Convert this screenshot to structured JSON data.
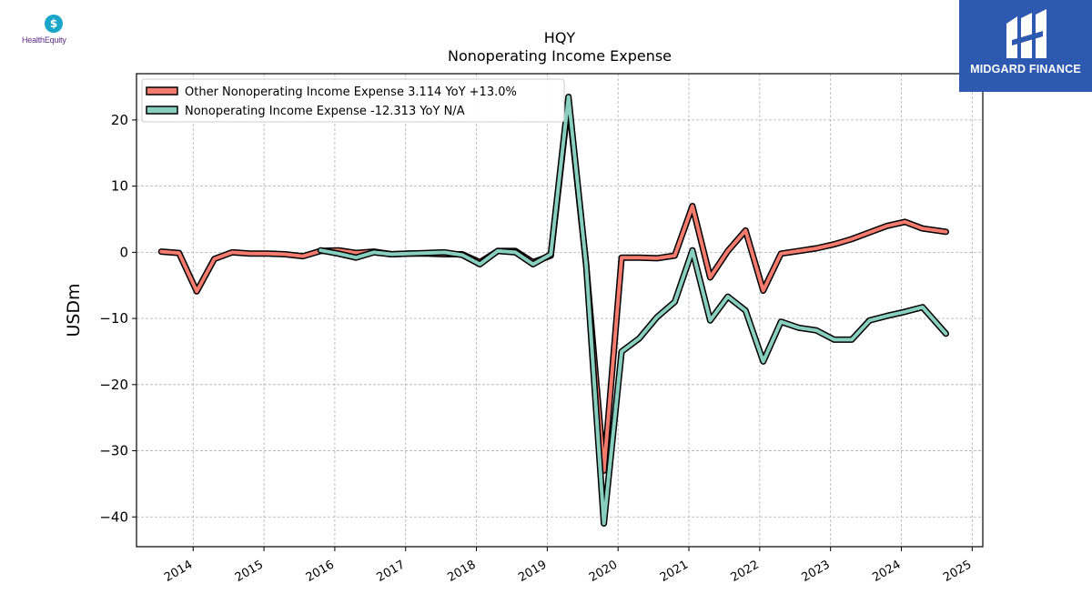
{
  "header": {
    "ticker": "HQY",
    "subtitle": "Nonoperating Income Expense"
  },
  "logos": {
    "left": {
      "name": "HealthEquity",
      "glyph": "$",
      "color": "#1aa6c8",
      "text_color": "#5b2c86"
    },
    "right": {
      "name": "MIDGARD FINANCE",
      "background": "#2e59b0"
    }
  },
  "chart_data": {
    "type": "line",
    "title": "HQY",
    "subtitle": "Nonoperating Income Expense",
    "ylabel": "USDm",
    "xlabel": "",
    "xlim": [
      2013.2,
      2025.15
    ],
    "ylim": [
      -44.5,
      27
    ],
    "x_ticks": [
      2014,
      2015,
      2016,
      2017,
      2018,
      2019,
      2020,
      2021,
      2022,
      2023,
      2024,
      2025
    ],
    "x_tick_labels": [
      "2014",
      "2015",
      "2016",
      "2017",
      "2018",
      "2019",
      "2020",
      "2021",
      "2022",
      "2023",
      "2024",
      "2025"
    ],
    "y_ticks": [
      20,
      10,
      0,
      -10,
      -20,
      -30,
      -40
    ],
    "y_tick_labels": [
      "20",
      "10",
      "0",
      "−10",
      "−20",
      "−30",
      "−40"
    ],
    "grid": true,
    "legend_position": "top-left",
    "series": [
      {
        "name": "Other Nonoperating Income Expense",
        "legend_label": "Other Nonoperating Income Expense  3.114 YoY +13.0%",
        "color": "#f47b6d",
        "points": [
          [
            2013.55,
            0.1
          ],
          [
            2013.8,
            -0.1
          ],
          [
            2014.05,
            -5.9
          ],
          [
            2014.3,
            -1
          ],
          [
            2014.55,
            0
          ],
          [
            2014.8,
            -0.2
          ],
          [
            2015.05,
            -0.2
          ],
          [
            2015.3,
            -0.3
          ],
          [
            2015.55,
            -0.6
          ],
          [
            2015.8,
            0.2
          ],
          [
            2016.05,
            0.3
          ],
          [
            2016.3,
            -0.1
          ],
          [
            2016.55,
            0.1
          ],
          [
            2016.8,
            -0.3
          ],
          [
            2017.05,
            -0.2
          ],
          [
            2017.3,
            -0.2
          ],
          [
            2017.55,
            -0.3
          ],
          [
            2017.8,
            -0.3
          ],
          [
            2018.05,
            -1.5
          ],
          [
            2018.3,
            0.2
          ],
          [
            2018.55,
            0.2
          ],
          [
            2018.8,
            -1.5
          ],
          [
            2019.05,
            -0.5
          ],
          [
            2019.3,
            23
          ],
          [
            2019.55,
            -2
          ],
          [
            2019.8,
            -33
          ],
          [
            2020.05,
            -0.8
          ],
          [
            2020.3,
            -0.8
          ],
          [
            2020.55,
            -0.9
          ],
          [
            2020.8,
            -0.5
          ],
          [
            2021.05,
            7
          ],
          [
            2021.3,
            -3.8
          ],
          [
            2021.55,
            0.2
          ],
          [
            2021.8,
            3.3
          ],
          [
            2022.05,
            -5.8
          ],
          [
            2022.3,
            -0.2
          ],
          [
            2022.55,
            0.2
          ],
          [
            2022.8,
            0.6
          ],
          [
            2023.05,
            1.2
          ],
          [
            2023.3,
            2
          ],
          [
            2023.55,
            3
          ],
          [
            2023.8,
            4
          ],
          [
            2024.05,
            4.6
          ],
          [
            2024.3,
            3.6
          ],
          [
            2024.63,
            3.1
          ]
        ]
      },
      {
        "name": "Nonoperating Income Expense",
        "legend_label": "Nonoperating Income Expense  -12.313 YoY N/A",
        "color": "#88cfc0",
        "points": [
          [
            2015.8,
            0.3
          ],
          [
            2016.05,
            -0.2
          ],
          [
            2016.3,
            -0.8
          ],
          [
            2016.55,
            0
          ],
          [
            2016.8,
            -0.3
          ],
          [
            2017.05,
            -0.2
          ],
          [
            2017.3,
            -0.1
          ],
          [
            2017.55,
            0
          ],
          [
            2017.8,
            -0.4
          ],
          [
            2018.05,
            -1.8
          ],
          [
            2018.3,
            0.2
          ],
          [
            2018.55,
            0
          ],
          [
            2018.8,
            -1.8
          ],
          [
            2019.05,
            -0.3
          ],
          [
            2019.3,
            23.5
          ],
          [
            2019.55,
            -2
          ],
          [
            2019.8,
            -41
          ],
          [
            2020.05,
            -15
          ],
          [
            2020.3,
            -13
          ],
          [
            2020.55,
            -9.8
          ],
          [
            2020.8,
            -7.5
          ],
          [
            2021.05,
            0.3
          ],
          [
            2021.3,
            -10.3
          ],
          [
            2021.55,
            -6.7
          ],
          [
            2021.8,
            -8.8
          ],
          [
            2022.05,
            -16.5
          ],
          [
            2022.3,
            -10.5
          ],
          [
            2022.55,
            -11.4
          ],
          [
            2022.8,
            -11.8
          ],
          [
            2023.05,
            -13.2
          ],
          [
            2023.3,
            -13.2
          ],
          [
            2023.55,
            -10.3
          ],
          [
            2023.8,
            -9.6
          ],
          [
            2024.05,
            -9
          ],
          [
            2024.3,
            -8.3
          ],
          [
            2024.63,
            -12.3
          ]
        ]
      }
    ]
  }
}
